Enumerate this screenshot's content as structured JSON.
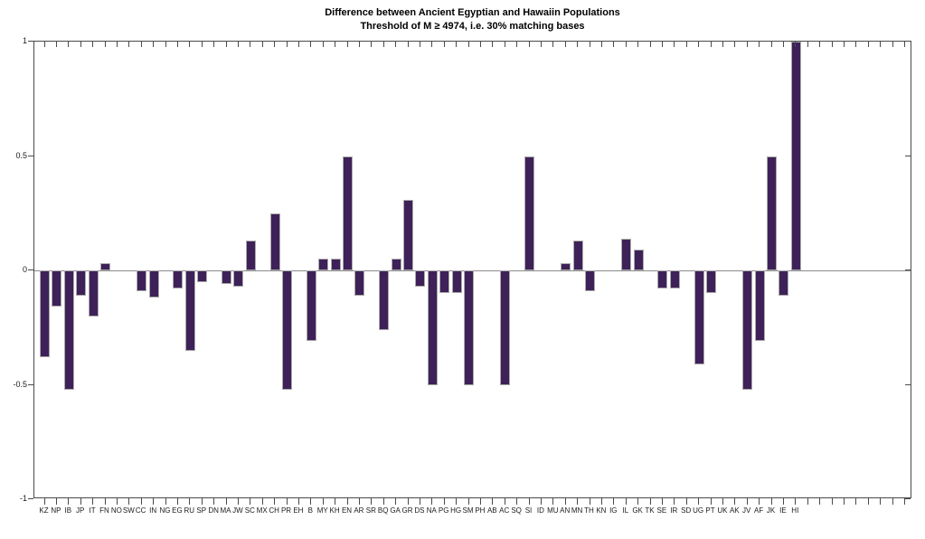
{
  "chart_data": {
    "type": "bar",
    "title": "Difference between Ancient Egyptian and Hawaiin Populations",
    "subtitle": "Threshold of M ≥ 4974, i.e. 30% matching bases",
    "categories": [
      "KZ",
      "NP",
      "IB",
      "JP",
      "IT",
      "FN",
      "NO",
      "SW",
      "CC",
      "IN",
      "NG",
      "EG",
      "RU",
      "SP",
      "DN",
      "MA",
      "JW",
      "SC",
      "MX",
      "CH",
      "PR",
      "EH",
      "B",
      "MY",
      "KH",
      "EN",
      "AR",
      "SR",
      "BQ",
      "GA",
      "GR",
      "DS",
      "NA",
      "PG",
      "HG",
      "SM",
      "PH",
      "AB",
      "AC",
      "SQ",
      "SI",
      "ID",
      "MU",
      "AN",
      "MN",
      "TH",
      "KN",
      "IG",
      "IL",
      "GK",
      "TK",
      "SE",
      "IR",
      "SD",
      "UG",
      "PT",
      "UK",
      "AK",
      "JV",
      "AF",
      "JK",
      "IE",
      "HI"
    ],
    "values": [
      -0.38,
      -0.16,
      -0.52,
      -0.11,
      -0.2,
      0.03,
      0,
      0,
      -0.09,
      -0.12,
      0,
      -0.08,
      -0.35,
      -0.05,
      0,
      -0.06,
      -0.07,
      0.13,
      0,
      0.25,
      -0.52,
      0,
      -0.31,
      0.05,
      0.05,
      0.5,
      -0.11,
      0,
      -0.26,
      0.05,
      0.31,
      -0.07,
      -0.5,
      -0.1,
      -0.1,
      -0.5,
      0,
      0,
      -0.5,
      0,
      0.5,
      0,
      0,
      0.03,
      0.13,
      -0.09,
      0,
      0,
      0.14,
      0.09,
      0,
      -0.08,
      -0.08,
      0,
      -0.41,
      -0.1,
      0,
      0,
      -0.52,
      -0.31,
      0.5,
      -0.11,
      1.0
    ],
    "xlabel": "",
    "ylabel": "",
    "ylim": [
      -1,
      1
    ],
    "yticks": [
      1,
      0.5,
      0,
      -0.5,
      -1
    ],
    "ytick_labels": [
      "1",
      "0.5",
      "0",
      "-0.5",
      "-1"
    ],
    "grid": false,
    "zero_line": true,
    "legend": "none",
    "bar_color": "#3e2159",
    "bar_edge_color": "#ababab",
    "axis_color": "#4a4a4a",
    "zero_line_color": "#8c8c8c"
  }
}
